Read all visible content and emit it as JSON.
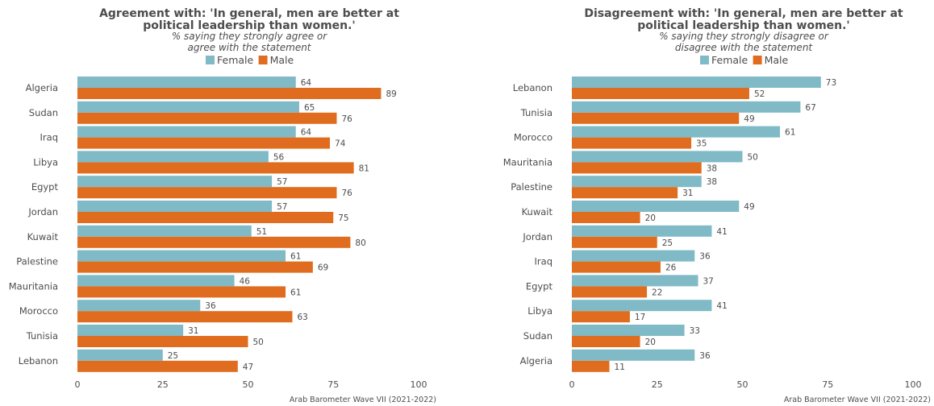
{
  "chart_data": [
    {
      "type": "bar",
      "orientation": "horizontal",
      "title_lines": [
        "Agreement with: 'In general, men are better at",
        "political leadership than women.'"
      ],
      "subtitle_lines": [
        "% saying they strongly agree or",
        "agree with the statement"
      ],
      "categories": [
        "Algeria",
        "Sudan",
        "Iraq",
        "Libya",
        "Egypt",
        "Jordan",
        "Kuwait",
        "Palestine",
        "Mauritania",
        "Morocco",
        "Tunisia",
        "Lebanon"
      ],
      "series": [
        {
          "name": "Female",
          "color": "#7fbac6",
          "values": [
            64,
            65,
            64,
            56,
            57,
            57,
            51,
            61,
            46,
            36,
            31,
            25
          ]
        },
        {
          "name": "Male",
          "color": "#e06d1f",
          "values": [
            89,
            76,
            74,
            81,
            76,
            75,
            80,
            69,
            61,
            63,
            50,
            47
          ]
        }
      ],
      "xlim": [
        0,
        100
      ],
      "xticks": [
        0,
        25,
        50,
        75,
        100
      ],
      "legend": "top-center",
      "grid": false,
      "caption": "Arab Barometer Wave VII (2021-2022)"
    },
    {
      "type": "bar",
      "orientation": "horizontal",
      "title_lines": [
        "Disagreement with: 'In general, men are better at",
        "political leadership than women.'"
      ],
      "subtitle_lines": [
        "% saying they strongly disagree or",
        "disagree with the statement"
      ],
      "categories": [
        "Lebanon",
        "Tunisia",
        "Morocco",
        "Mauritania",
        "Palestine",
        "Kuwait",
        "Jordan",
        "Iraq",
        "Egypt",
        "Libya",
        "Sudan",
        "Algeria"
      ],
      "series": [
        {
          "name": "Female",
          "color": "#7fbac6",
          "values": [
            73,
            67,
            61,
            50,
            38,
            49,
            41,
            36,
            37,
            41,
            33,
            36
          ]
        },
        {
          "name": "Male",
          "color": "#e06d1f",
          "values": [
            52,
            49,
            35,
            38,
            31,
            20,
            25,
            26,
            22,
            17,
            20,
            11
          ]
        }
      ],
      "xlim": [
        0,
        100
      ],
      "xticks": [
        0,
        25,
        50,
        75,
        100
      ],
      "legend": "top-center",
      "grid": false,
      "caption": "Arab Barometer Wave VII (2021-2022)"
    }
  ]
}
